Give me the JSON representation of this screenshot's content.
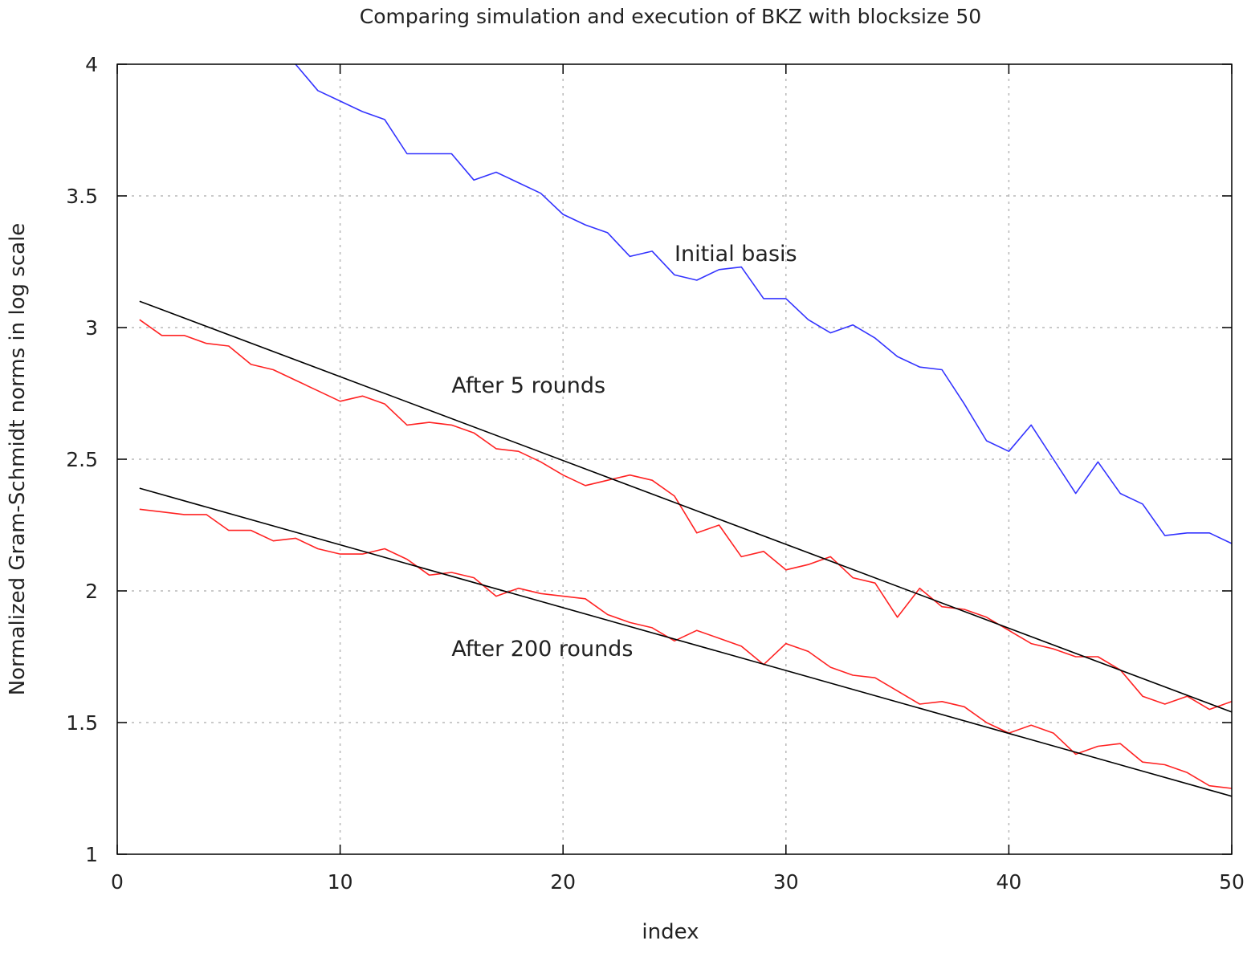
{
  "chart_data": {
    "type": "line",
    "title": "Comparing simulation and execution of BKZ with blocksize 50",
    "xlabel": "index",
    "ylabel": "Normalized Gram-Schmidt norms in log scale",
    "xlim": [
      0,
      50
    ],
    "ylim": [
      1,
      4
    ],
    "xticks": [
      0,
      10,
      20,
      30,
      40,
      50
    ],
    "yticks": [
      1,
      1.5,
      2,
      2.5,
      3,
      3.5,
      4
    ],
    "grid": true,
    "legend": "none",
    "colors": {
      "initial": "#3333ff",
      "execution": "#ff2222",
      "simulation": "#000000"
    },
    "annotations": [
      {
        "text": "Initial basis",
        "x": 25,
        "y": 3.28
      },
      {
        "text": "After 5 rounds",
        "x": 15,
        "y": 2.78
      },
      {
        "text": "After 200 rounds",
        "x": 15,
        "y": 1.78
      }
    ],
    "series": [
      {
        "key": "initial",
        "x": [
          8,
          9,
          10,
          11,
          12,
          13,
          14,
          15,
          16,
          17,
          18,
          19,
          20,
          21,
          22,
          23,
          24,
          25,
          26,
          27,
          28,
          29,
          30,
          31,
          32,
          33,
          34,
          35,
          36,
          37,
          38,
          39,
          40,
          41,
          42,
          43,
          44,
          45,
          46,
          47,
          48,
          49,
          50
        ],
        "y": [
          4.0,
          3.9,
          3.86,
          3.82,
          3.79,
          3.66,
          3.66,
          3.66,
          3.56,
          3.59,
          3.55,
          3.51,
          3.43,
          3.39,
          3.36,
          3.27,
          3.29,
          3.2,
          3.18,
          3.22,
          3.23,
          3.11,
          3.11,
          3.03,
          2.98,
          3.01,
          2.96,
          2.89,
          2.85,
          2.84,
          2.71,
          2.57,
          2.53,
          2.63,
          2.5,
          2.37,
          2.49,
          2.37,
          2.33,
          2.21,
          2.22,
          2.22,
          2.18
        ]
      },
      {
        "key": "execution",
        "x": [
          1,
          2,
          3,
          4,
          5,
          6,
          7,
          8,
          9,
          10,
          11,
          12,
          13,
          14,
          15,
          16,
          17,
          18,
          19,
          20,
          21,
          22,
          23,
          24,
          25,
          26,
          27,
          28,
          29,
          30,
          31,
          32,
          33,
          34,
          35,
          36,
          37,
          38,
          39,
          40,
          41,
          42,
          43,
          44,
          45,
          46,
          47,
          48,
          49,
          50
        ],
        "y": [
          3.03,
          2.97,
          2.97,
          2.94,
          2.93,
          2.86,
          2.84,
          2.8,
          2.76,
          2.72,
          2.74,
          2.71,
          2.63,
          2.64,
          2.63,
          2.6,
          2.54,
          2.53,
          2.49,
          2.44,
          2.4,
          2.42,
          2.44,
          2.42,
          2.36,
          2.22,
          2.25,
          2.13,
          2.15,
          2.08,
          2.1,
          2.13,
          2.05,
          2.03,
          1.9,
          2.01,
          1.94,
          1.93,
          1.9,
          1.85,
          1.8,
          1.78,
          1.75,
          1.75,
          1.7,
          1.6,
          1.57,
          1.6,
          1.55,
          1.58
        ]
      },
      {
        "key": "simulation",
        "x": [
          1,
          50
        ],
        "y": [
          3.1,
          1.54
        ]
      },
      {
        "key": "execution",
        "x": [
          1,
          2,
          3,
          4,
          5,
          6,
          7,
          8,
          9,
          10,
          11,
          12,
          13,
          14,
          15,
          16,
          17,
          18,
          19,
          20,
          21,
          22,
          23,
          24,
          25,
          26,
          27,
          28,
          29,
          30,
          31,
          32,
          33,
          34,
          35,
          36,
          37,
          38,
          39,
          40,
          41,
          42,
          43,
          44,
          45,
          46,
          47,
          48,
          49,
          50
        ],
        "y": [
          2.31,
          2.3,
          2.29,
          2.29,
          2.23,
          2.23,
          2.19,
          2.2,
          2.16,
          2.14,
          2.14,
          2.16,
          2.12,
          2.06,
          2.07,
          2.05,
          1.98,
          2.01,
          1.99,
          1.98,
          1.97,
          1.91,
          1.88,
          1.86,
          1.81,
          1.85,
          1.82,
          1.79,
          1.72,
          1.8,
          1.77,
          1.71,
          1.68,
          1.67,
          1.62,
          1.57,
          1.58,
          1.56,
          1.5,
          1.46,
          1.49,
          1.46,
          1.38,
          1.41,
          1.42,
          1.35,
          1.34,
          1.31,
          1.26,
          1.25
        ]
      },
      {
        "key": "simulation",
        "x": [
          1,
          50
        ],
        "y": [
          2.39,
          1.22
        ]
      }
    ]
  }
}
